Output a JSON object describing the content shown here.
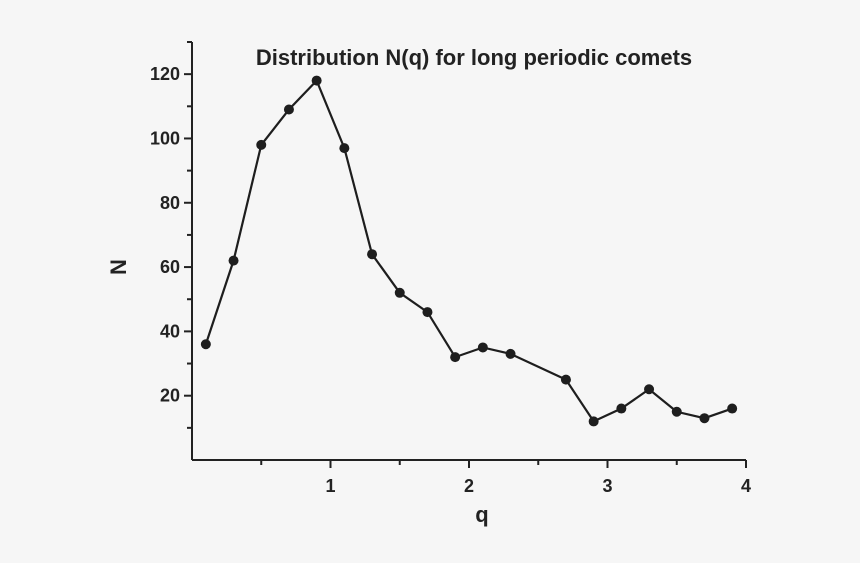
{
  "chart_data": {
    "type": "line",
    "title": "Distribution N(q) for long periodic comets",
    "xlabel": "q",
    "ylabel": "N",
    "xlim": [
      0,
      4
    ],
    "ylim": [
      0,
      130
    ],
    "xticks": [
      "1",
      "2",
      "3",
      "4"
    ],
    "yticks": [
      "20",
      "40",
      "60",
      "80",
      "100",
      "120"
    ],
    "grid": false,
    "series": [
      {
        "x": [
          0.1,
          0.3,
          0.5,
          0.7,
          0.9,
          1.1,
          1.3,
          1.5,
          1.7,
          1.9,
          2.1,
          2.3,
          2.7,
          2.9,
          3.1,
          3.3,
          3.5,
          3.7,
          3.9
        ],
        "values": [
          36,
          62,
          98,
          109,
          118,
          97,
          64,
          52,
          46,
          32,
          35,
          33,
          25,
          12,
          16,
          22,
          15,
          13,
          16
        ],
        "marker": "circle"
      }
    ]
  }
}
